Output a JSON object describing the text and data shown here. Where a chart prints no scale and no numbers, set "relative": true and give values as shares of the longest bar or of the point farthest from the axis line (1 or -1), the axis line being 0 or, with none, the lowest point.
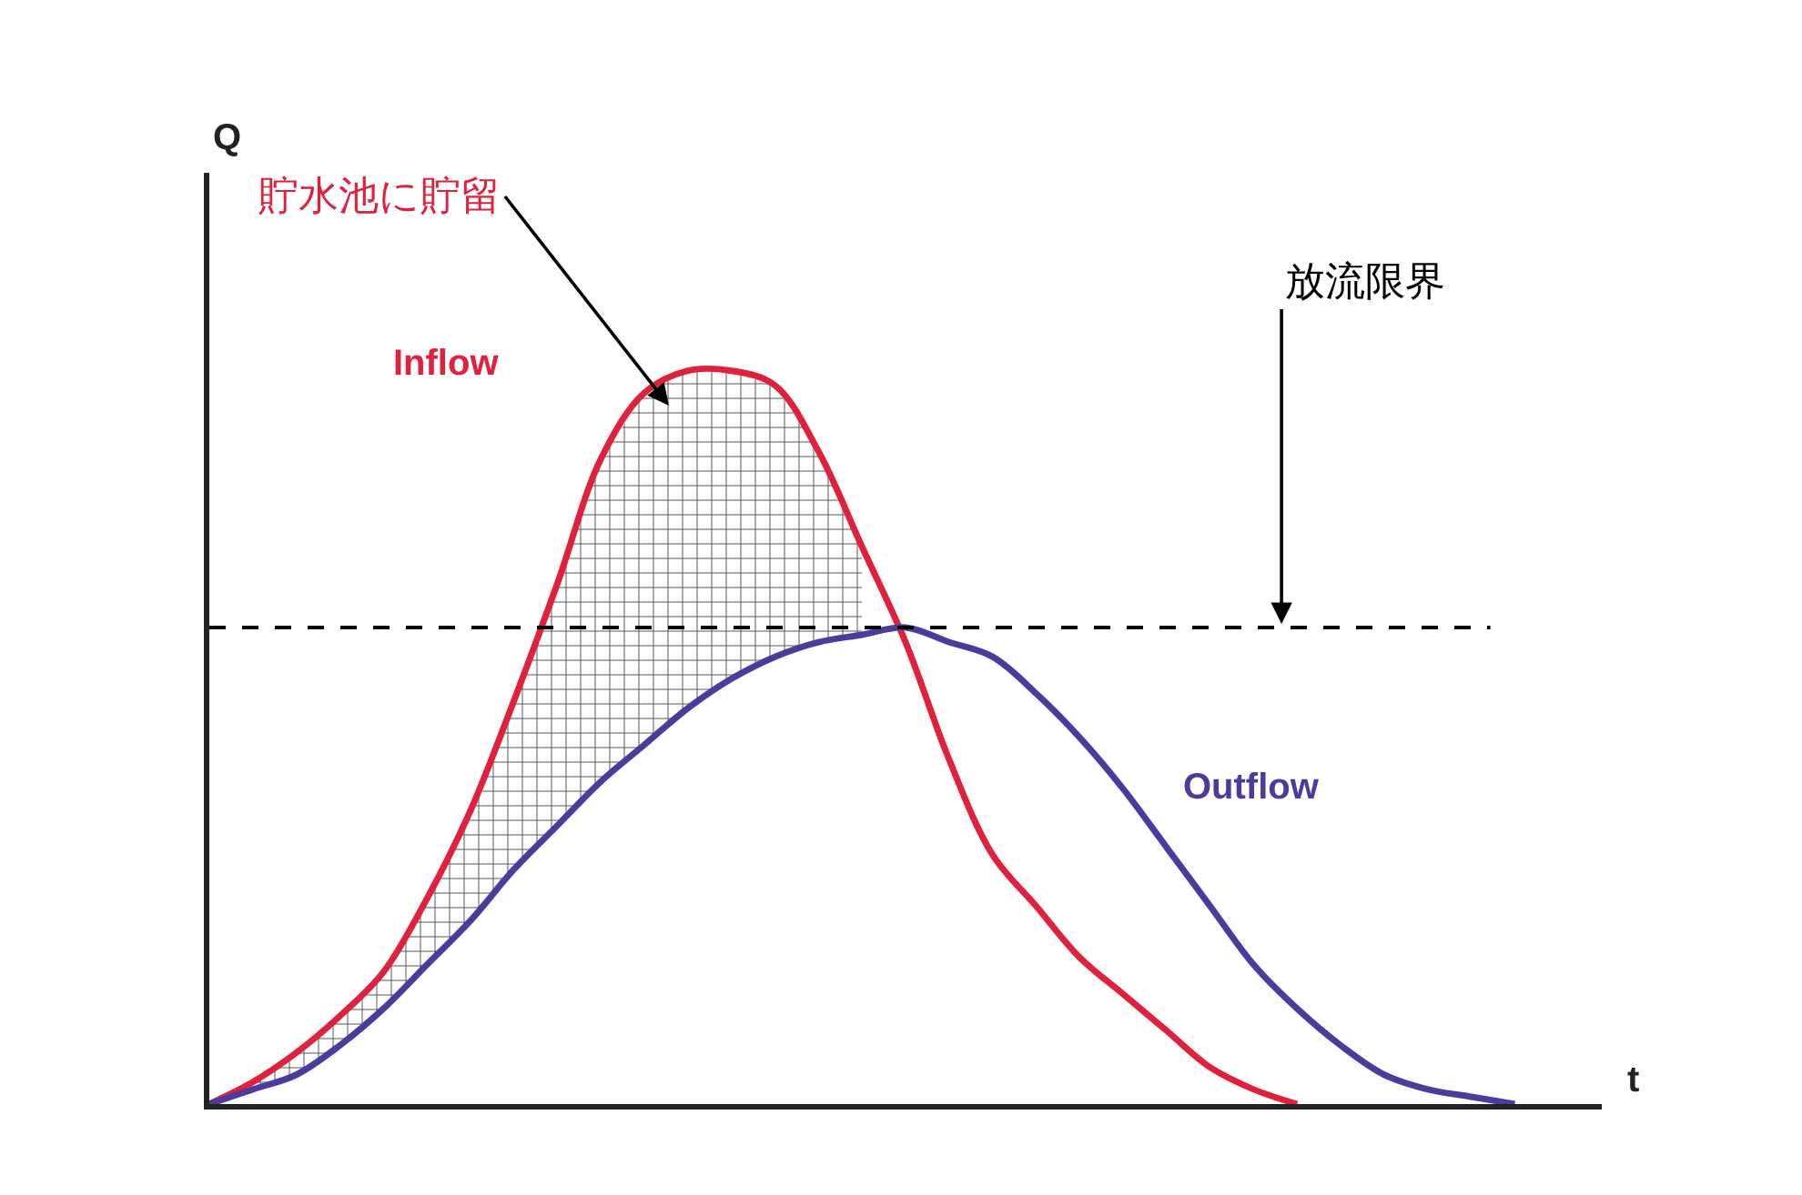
{
  "chart_data": {
    "type": "line",
    "relative": true,
    "xlabel": "t",
    "line_style": "solid",
    "categories": [
      null,
      null,
      null,
      null,
      null,
      null,
      null,
      null,
      null,
      null,
      null,
      null,
      null,
      null,
      null,
      null,
      null,
      null,
      null,
      null,
      null,
      null,
      null,
      null,
      null,
      null,
      null,
      null,
      null,
      null,
      null
    ],
    "series": [
      {
        "name": "Inflow",
        "color": "#e0203c",
        "values": [
          0,
          0.03,
          0.07,
          0.12,
          0.18,
          0.28,
          0.4,
          0.55,
          0.71,
          0.88,
          0.97,
          1,
          1,
          0.98,
          0.89,
          0.76,
          0.63,
          0.47,
          0.34,
          0.27,
          0.2,
          0.15,
          0.1,
          0.05,
          0.02,
          0,
          null,
          null,
          null,
          null,
          null
        ],
        "lower": [
          0,
          0.02,
          0.04,
          0.08,
          0.13,
          0.19,
          0.25,
          0.32,
          0.38,
          0.44,
          0.49,
          0.54,
          0.58,
          0.61,
          0.63,
          0.64,
          null,
          null,
          null,
          null,
          null,
          null,
          null,
          null,
          null,
          null,
          null,
          null,
          null,
          null,
          null
        ],
        "upper": [
          0,
          0.03,
          0.07,
          0.12,
          0.18,
          0.28,
          0.4,
          0.55,
          0.71,
          0.88,
          0.97,
          1,
          1,
          0.98,
          0.89,
          0.76,
          null,
          null,
          null,
          null,
          null,
          null,
          null,
          null,
          null,
          null,
          null,
          null,
          null,
          null,
          null
        ]
      },
      {
        "name": "Outflow",
        "color": "#4a3c9c",
        "values": [
          0,
          0.02,
          0.04,
          0.08,
          0.13,
          0.19,
          0.25,
          0.32,
          0.38,
          0.44,
          0.49,
          0.54,
          0.58,
          0.61,
          0.63,
          0.64,
          0.65,
          0.63,
          0.61,
          0.56,
          0.5,
          0.43,
          0.35,
          0.27,
          0.19,
          0.13,
          0.08,
          0.04,
          0.02,
          0.01,
          0
        ]
      }
    ],
    "ref_lines": [
      {
        "axis": "y",
        "value": 0.65,
        "label": "放流限界",
        "color": "#000000",
        "line_style": "dashed"
      }
    ],
    "annotations": [
      "貯水池に貯留",
      "Q"
    ]
  }
}
